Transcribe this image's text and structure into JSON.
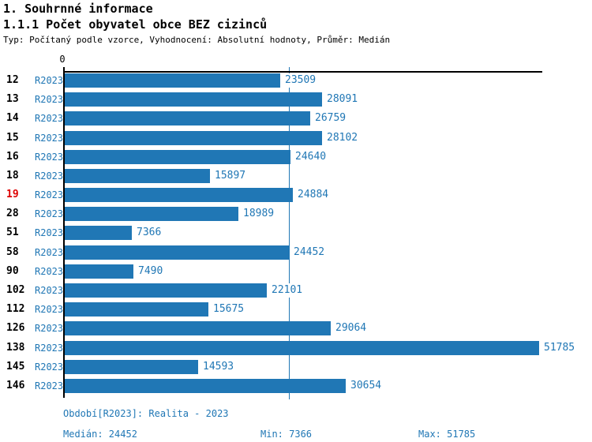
{
  "header": {
    "title": "1. Souhrnné informace",
    "subtitle": "1.1.1 Počet obyvatel obce BEZ cizinců",
    "meta": "Typ: Počítaný podle vzorce, Vyhodnocení: Absolutní hodnoty, Průměr: Medián"
  },
  "chart_data": {
    "type": "bar",
    "orientation": "horizontal",
    "title": "1.1.1 Počet obyvatel obce BEZ cizinců",
    "origin_tick_label": "0",
    "series_label": "R2023",
    "categories": [
      "12",
      "13",
      "14",
      "15",
      "16",
      "18",
      "19",
      "28",
      "51",
      "58",
      "90",
      "102",
      "112",
      "126",
      "138",
      "145",
      "146"
    ],
    "values": [
      23509,
      28091,
      26759,
      28102,
      24640,
      15897,
      24884,
      18989,
      7366,
      24452,
      7490,
      22101,
      15675,
      29064,
      51785,
      14593,
      30654
    ],
    "highlighted_category": "19",
    "median": 24452,
    "min": 7366,
    "max": 51785,
    "xlim": [
      0,
      52200
    ],
    "grid": false,
    "legend_position": "none",
    "colors": {
      "bar": "#2077b5",
      "text_blue": "#2077b5",
      "highlight_red": "#dd0000",
      "axis": "#000000"
    }
  },
  "footer": {
    "period": "Období[R2023]: Realita - 2023",
    "median": "Medián: 24452",
    "min": "Min: 7366",
    "max": "Max: 51785"
  }
}
